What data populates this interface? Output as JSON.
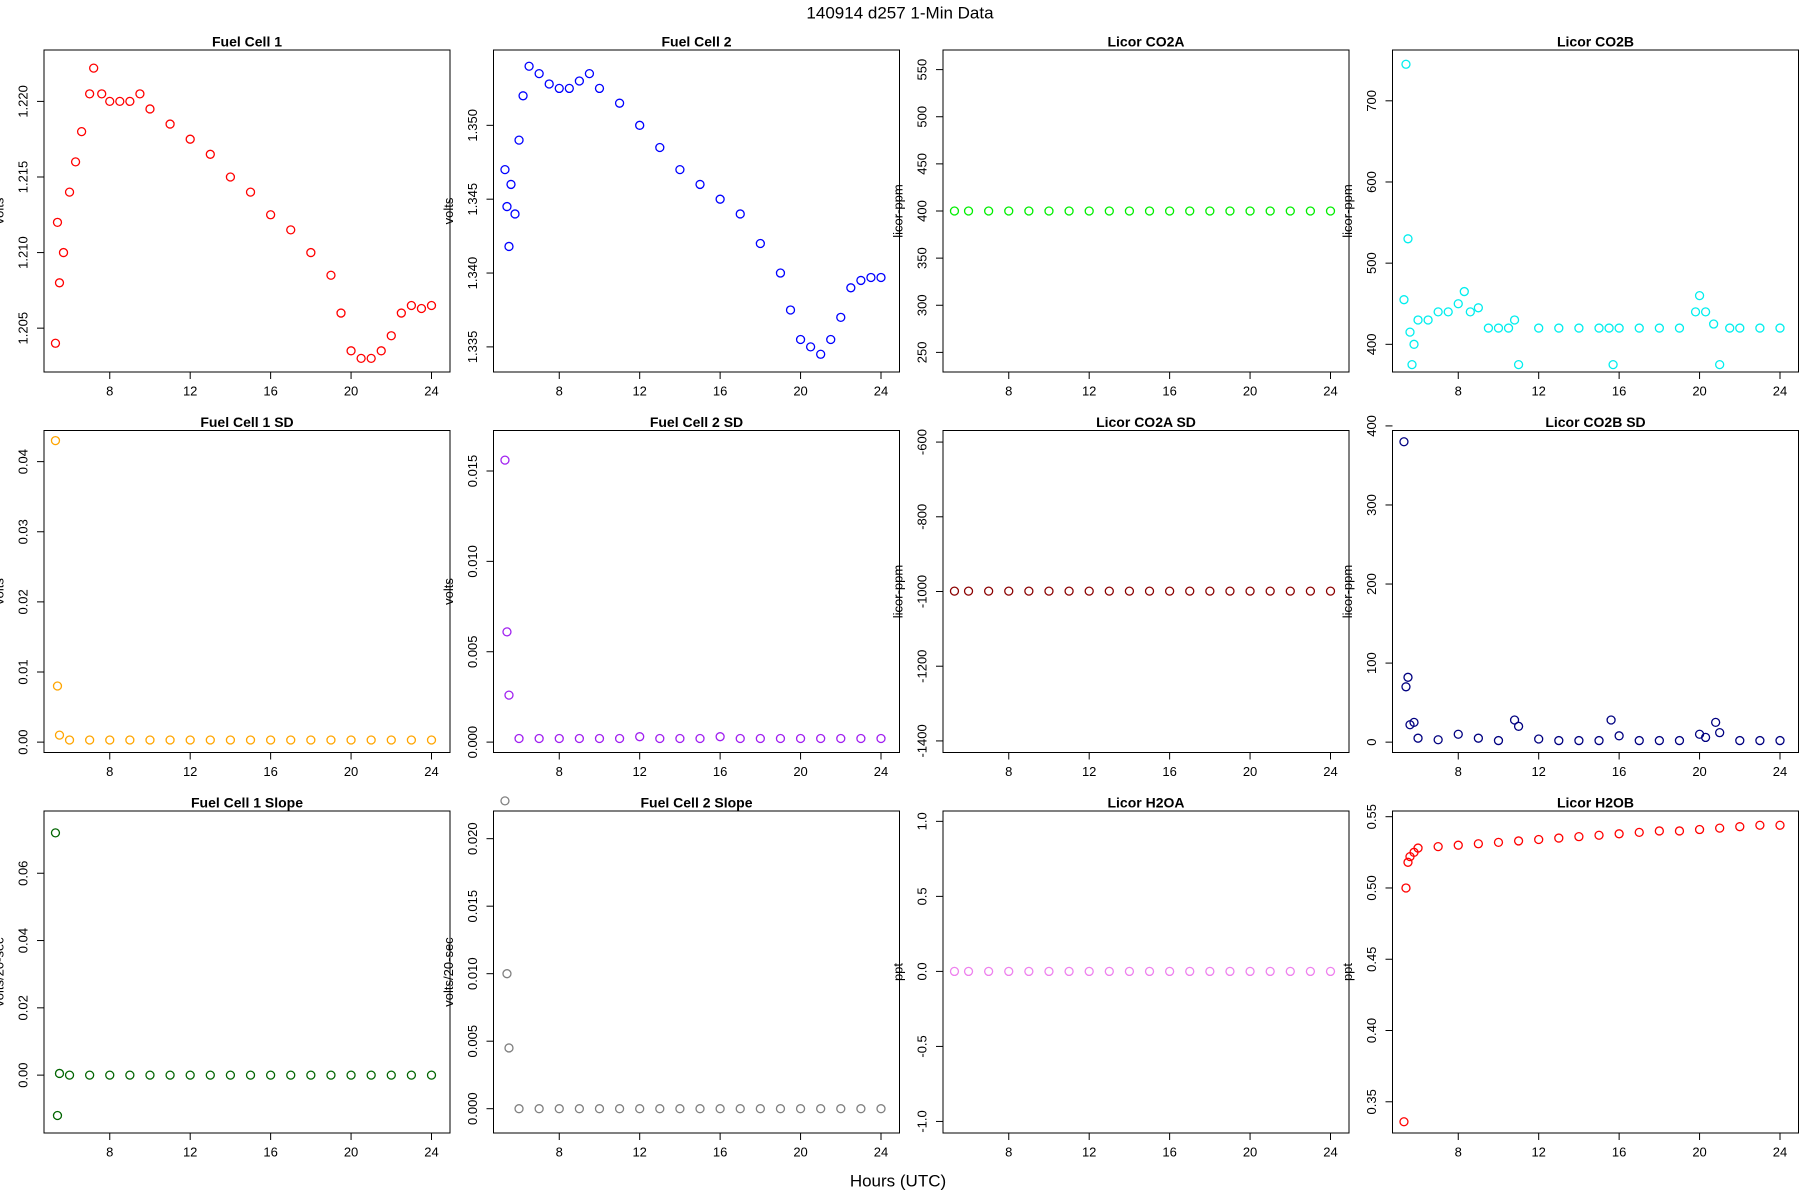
{
  "title": "140914   d257   1-Min Data",
  "xlabel": "Hours (UTC)",
  "chart_data": [
    {
      "type": "scatter",
      "title": "Fuel Cell 1",
      "ylabel": "volts",
      "color": "#ff0000",
      "x": [
        5.3,
        5.4,
        5.5,
        5.7,
        6,
        6.3,
        6.6,
        7,
        7.2,
        7.6,
        8,
        8.5,
        9,
        9.5,
        10,
        11,
        12,
        13,
        14,
        15,
        16,
        17,
        18,
        19,
        19.5,
        20,
        20.5,
        21,
        21.5,
        22,
        22.5,
        23,
        23.5,
        24
      ],
      "values": [
        1.204,
        1.212,
        1.208,
        1.21,
        1.214,
        1.216,
        1.218,
        1.2205,
        1.2222,
        1.2205,
        1.22,
        1.22,
        1.22,
        1.2205,
        1.2195,
        1.2185,
        1.2175,
        1.2165,
        1.215,
        1.214,
        1.2125,
        1.2115,
        1.21,
        1.2085,
        1.206,
        1.2035,
        1.203,
        1.203,
        1.2035,
        1.2045,
        1.206,
        1.2065,
        1.2063,
        1.2065
      ],
      "xlim": [
        4.73,
        24.92
      ],
      "xticks": [
        8,
        12,
        16,
        20,
        24
      ],
      "ylim": [
        1.2021,
        1.2234
      ],
      "yticks": [
        1.205,
        {
          "value": 1.21,
          "label": "1.210"
        },
        1.215,
        {
          "value": 1.22,
          "label": "1.220"
        }
      ]
    },
    {
      "type": "scatter",
      "title": "Fuel Cell 2",
      "ylabel": "volts",
      "color": "#0000ff",
      "x": [
        5.3,
        5.4,
        5.5,
        5.6,
        5.8,
        6,
        6.2,
        6.5,
        7,
        7.5,
        8,
        8.5,
        9,
        9.5,
        10,
        11,
        12,
        13,
        14,
        15,
        16,
        17,
        18,
        19,
        19.5,
        20,
        20.5,
        21,
        21.5,
        22,
        22.5,
        23,
        23.5,
        24
      ],
      "values": [
        1.347,
        1.3445,
        1.3418,
        1.346,
        1.344,
        1.349,
        1.352,
        1.354,
        1.3535,
        1.3528,
        1.3525,
        1.3525,
        1.353,
        1.3535,
        1.3525,
        1.3515,
        1.35,
        1.3485,
        1.347,
        1.346,
        1.345,
        1.344,
        1.342,
        1.34,
        1.3375,
        1.3355,
        1.335,
        1.3345,
        1.3355,
        1.337,
        1.339,
        1.3395,
        1.3397,
        1.3397
      ],
      "xlim": [
        4.73,
        24.92
      ],
      "xticks": [
        8,
        12,
        16,
        20,
        24
      ],
      "ylim": [
        1.3333,
        1.3551
      ],
      "yticks": [
        1.335,
        {
          "value": 1.34,
          "label": "1.340"
        },
        1.345,
        {
          "value": 1.35,
          "label": "1.350"
        }
      ]
    },
    {
      "type": "scatter",
      "title": "Licor CO2A",
      "ylabel": "licor-ppm",
      "color": "#00ee00",
      "x": [
        5.3,
        6,
        7,
        8,
        9,
        10,
        11,
        12,
        13,
        14,
        15,
        16,
        17,
        18,
        19,
        20,
        21,
        22,
        23,
        24
      ],
      "values": [
        400,
        400,
        400,
        400,
        400,
        400,
        400,
        400,
        400,
        400,
        400,
        400,
        400,
        400,
        400,
        400,
        400,
        400,
        400,
        400
      ],
      "xlim": [
        4.73,
        24.92
      ],
      "xticks": [
        8,
        12,
        16,
        20,
        24
      ],
      "ylim": [
        229.2,
        570.8
      ],
      "yticks": [
        250,
        300,
        350,
        400,
        450,
        500,
        550
      ]
    },
    {
      "type": "scatter",
      "title": "Licor CO2B",
      "ylabel": "licor-ppm",
      "color": "#00eeee",
      "x": [
        5.3,
        5.4,
        5.5,
        5.6,
        5.7,
        5.8,
        6,
        6.5,
        7,
        7.5,
        8,
        8.3,
        8.6,
        9,
        9.5,
        10,
        10.5,
        10.8,
        11,
        12,
        13,
        14,
        15,
        15.5,
        15.7,
        16,
        17,
        18,
        19,
        19.8,
        20,
        20.3,
        20.7,
        21,
        21.5,
        22,
        23,
        24
      ],
      "values": [
        455,
        745,
        530,
        415,
        375,
        400,
        430,
        430,
        440,
        440,
        450,
        465,
        440,
        445,
        420,
        420,
        420,
        430,
        375,
        420,
        420,
        420,
        420,
        420,
        375,
        420,
        420,
        420,
        420,
        440,
        460,
        440,
        425,
        375,
        420,
        420,
        420,
        420
      ],
      "xlim": [
        4.73,
        24.92
      ],
      "xticks": [
        8,
        12,
        16,
        20,
        24
      ],
      "ylim": [
        365.9,
        762.6
      ],
      "yticks": [
        400,
        500,
        600,
        700
      ]
    },
    {
      "type": "scatter",
      "title": "Fuel Cell 1 SD",
      "ylabel": "volts",
      "color": "#ffa500",
      "x": [
        5.3,
        5.4,
        5.5,
        6,
        7,
        8,
        9,
        10,
        11,
        12,
        13,
        14,
        15,
        16,
        17,
        18,
        19,
        20,
        21,
        22,
        23,
        24
      ],
      "values": [
        0.043,
        0.008,
        0.001,
        0.0003,
        0.0003,
        0.0003,
        0.0003,
        0.0003,
        0.0003,
        0.0003,
        0.0003,
        0.0003,
        0.0003,
        0.0003,
        0.0003,
        0.0003,
        0.0003,
        0.0003,
        0.0003,
        0.0003,
        0.0003,
        0.0003
      ],
      "xlim": [
        4.73,
        24.92
      ],
      "xticks": [
        8,
        12,
        16,
        20,
        24
      ],
      "ylim": [
        -0.00148,
        0.04444
      ],
      "yticks": [
        {
          "value": 0,
          "label": "0.00"
        },
        0.01,
        0.02,
        0.03,
        0.04
      ]
    },
    {
      "type": "scatter",
      "title": "Fuel Cell 2 SD",
      "ylabel": "volts",
      "color": "#a020f0",
      "x": [
        5.3,
        5.4,
        5.5,
        6,
        7,
        8,
        9,
        10,
        11,
        12,
        13,
        14,
        15,
        16,
        17,
        18,
        19,
        20,
        21,
        22,
        23,
        24
      ],
      "values": [
        0.0156,
        0.0061,
        0.0026,
        0.0002,
        0.0002,
        0.0002,
        0.0002,
        0.0002,
        0.0002,
        0.0003,
        0.0002,
        0.0002,
        0.0002,
        0.0003,
        0.0002,
        0.0002,
        0.0002,
        0.0002,
        0.0002,
        0.0002,
        0.0002,
        0.0002
      ],
      "xlim": [
        4.73,
        24.92
      ],
      "xticks": [
        8,
        12,
        16,
        20,
        24
      ],
      "ylim": [
        -0.000575,
        0.01724
      ],
      "yticks": [
        {
          "value": 0,
          "label": "0.000"
        },
        0.005,
        {
          "value": 0.01,
          "label": "0.010"
        },
        0.015
      ]
    },
    {
      "type": "scatter",
      "title": "Licor CO2A SD",
      "ylabel": "licor-ppm",
      "color": "#8b0000",
      "x": [
        5.3,
        6,
        7,
        8,
        9,
        10,
        11,
        12,
        13,
        14,
        15,
        16,
        17,
        18,
        19,
        20,
        21,
        22,
        23,
        24
      ],
      "values": [
        -999,
        -999,
        -999,
        -999,
        -999,
        -999,
        -999,
        -999,
        -999,
        -999,
        -999,
        -999,
        -999,
        -999,
        -999,
        -999,
        -999,
        -999,
        -999,
        -999
      ],
      "xlim": [
        4.73,
        24.92
      ],
      "xticks": [
        8,
        12,
        16,
        20,
        24
      ],
      "ylim": [
        -1431,
        -569
      ],
      "yticks": [
        -1400,
        -1200,
        -1000,
        -800,
        -600
      ]
    },
    {
      "type": "scatter",
      "title": "Licor CO2B SD",
      "ylabel": "licor-ppm",
      "color": "#000080",
      "x": [
        5.3,
        5.4,
        5.5,
        5.6,
        5.8,
        6,
        7,
        8,
        9,
        10,
        10.8,
        11,
        12,
        13,
        14,
        15,
        15.6,
        16,
        17,
        18,
        19,
        20,
        20.3,
        20.8,
        21,
        22,
        23,
        24
      ],
      "values": [
        380,
        70,
        82,
        22,
        25,
        5,
        3,
        10,
        5,
        2,
        28,
        20,
        4,
        2,
        2,
        2,
        28,
        8,
        2,
        2,
        2,
        10,
        6,
        25,
        12,
        2,
        2,
        2
      ],
      "xlim": [
        4.73,
        24.92
      ],
      "xticks": [
        8,
        12,
        16,
        20,
        24
      ],
      "ylim": [
        -13.1,
        394.2
      ],
      "yticks": [
        0,
        100,
        200,
        300,
        400
      ]
    },
    {
      "type": "scatter",
      "title": "Fuel Cell 1 Slope",
      "ylabel": "volts/20-sec",
      "color": "#006400",
      "x": [
        5.3,
        5.4,
        5.5,
        6,
        7,
        8,
        9,
        10,
        11,
        12,
        13,
        14,
        15,
        16,
        17,
        18,
        19,
        20,
        21,
        22,
        23,
        24
      ],
      "values": [
        0.072,
        -0.012,
        0.0005,
        0,
        0,
        0,
        0,
        0,
        0,
        0,
        0,
        0,
        0,
        0,
        0,
        0,
        0,
        0,
        0,
        0,
        0,
        0
      ],
      "xlim": [
        4.73,
        24.92
      ],
      "xticks": [
        8,
        12,
        16,
        20,
        24
      ],
      "ylim": [
        -0.0172,
        0.0785
      ],
      "yticks": [
        {
          "value": 0,
          "label": "0.00"
        },
        0.02,
        0.04,
        0.06
      ]
    },
    {
      "type": "scatter",
      "title": "Fuel Cell 2 Slope",
      "ylabel": "volts/20-sec",
      "color": "#808080",
      "x": [
        5.3,
        5.4,
        5.5,
        6,
        7,
        8,
        9,
        10,
        11,
        12,
        13,
        14,
        15,
        16,
        17,
        18,
        19,
        20,
        21,
        22,
        23,
        24
      ],
      "values": [
        0.0228,
        0.01,
        0.0045,
        0,
        0,
        0,
        0,
        0,
        0,
        0,
        0,
        0,
        0,
        0,
        0,
        0,
        0,
        0,
        0,
        0,
        0,
        0
      ],
      "xlim": [
        4.73,
        24.92
      ],
      "xticks": [
        8,
        12,
        16,
        20,
        24
      ],
      "ylim": [
        -0.0018,
        0.02205
      ],
      "yticks": [
        {
          "value": 0,
          "label": "0.000"
        },
        0.005,
        {
          "value": 0.01,
          "label": "0.010"
        },
        0.015,
        {
          "value": 0.02,
          "label": "0.020"
        }
      ]
    },
    {
      "type": "scatter",
      "title": "Licor H2OA",
      "ylabel": "ppt",
      "color": "#ee82ee",
      "x": [
        5.3,
        6,
        7,
        8,
        9,
        10,
        11,
        12,
        13,
        14,
        15,
        16,
        17,
        18,
        19,
        20,
        21,
        22,
        23,
        24
      ],
      "values": [
        0,
        0,
        0,
        0,
        0,
        0,
        0,
        0,
        0,
        0,
        0,
        0,
        0,
        0,
        0,
        0,
        0,
        0,
        0,
        0
      ],
      "xlim": [
        4.73,
        24.92
      ],
      "xticks": [
        8,
        12,
        16,
        20,
        24
      ],
      "ylim": [
        -1.077,
        1.069
      ],
      "yticks": [
        {
          "value": -1,
          "label": "-1.0"
        },
        -0.5,
        {
          "value": 0,
          "label": "0.0"
        },
        0.5,
        {
          "value": 1,
          "label": "1.0"
        }
      ]
    },
    {
      "type": "scatter",
      "title": "Licor H2OB",
      "ylabel": "ppt",
      "color": "#ff0000",
      "x": [
        5.3,
        5.4,
        5.5,
        5.6,
        5.8,
        6,
        7,
        8,
        9,
        10,
        11,
        12,
        13,
        14,
        15,
        16,
        17,
        18,
        19,
        20,
        21,
        22,
        23,
        24
      ],
      "values": [
        0.336,
        0.5,
        0.518,
        0.522,
        0.525,
        0.528,
        0.529,
        0.53,
        0.531,
        0.532,
        0.533,
        0.534,
        0.535,
        0.536,
        0.537,
        0.538,
        0.539,
        0.54,
        0.54,
        0.541,
        0.542,
        0.543,
        0.544,
        0.544
      ],
      "xlim": [
        4.73,
        24.92
      ],
      "xticks": [
        8,
        12,
        16,
        20,
        24
      ],
      "ylim": [
        0.3281,
        0.554
      ],
      "yticks": [
        0.35,
        {
          "value": 0.4,
          "label": "0.40"
        },
        0.45,
        {
          "value": 0.5,
          "label": "0.50"
        },
        0.55
      ]
    }
  ]
}
